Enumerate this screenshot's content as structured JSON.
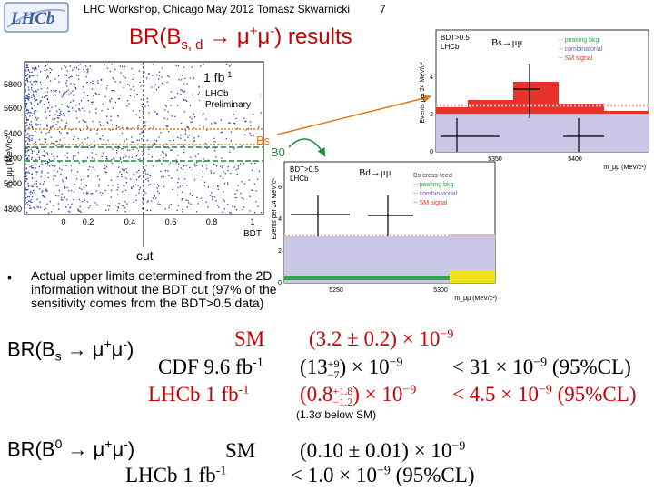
{
  "header": {
    "logo_text": "LHCb",
    "title": "LHC Workshop, Chicago May 2012 Tomasz Skwarnicki",
    "page_number": "7"
  },
  "slide_title": {
    "main": "BR(B",
    "sub": "s, d",
    "mid": " → μ",
    "sup1": "+",
    "mu2": "μ",
    "sup2": "-",
    "tail": ") results"
  },
  "scatter_plot": {
    "ylabel": "m_μμ (MeV/c²)",
    "xlabel": "BDT",
    "lumi": "1 fb",
    "lumi_sup": "-1",
    "experiment": "LHCb",
    "status": "Preliminary",
    "x_ticks": [
      "0",
      "0.2",
      "0.4",
      "0.6",
      "0.8",
      "1"
    ],
    "y_ticks": [
      "5800",
      "5600",
      "5400",
      "5200",
      "5000",
      "4800"
    ],
    "cut_label": "cut",
    "bs_label": "Bs",
    "b0_label": "B0"
  },
  "hist_bs": {
    "ylabel": "Events per 24 MeV/c²",
    "xlabel": "m_μμ (MeV/c²)",
    "cut": "BDT>0.5",
    "experiment": "LHCb",
    "decay": "Bs→μμ",
    "legend": [
      "-- peaking bkg",
      "-- combinatorial",
      "-- SM signal"
    ],
    "x_ticks": [
      "5350",
      "5400"
    ],
    "y_ticks": [
      "0",
      "2",
      "4"
    ]
  },
  "hist_bd": {
    "ylabel": "Events per 24 MeV/c²",
    "xlabel": "m_μμ (MeV/c²)",
    "cut": "BDT>0.5",
    "experiment": "LHCb",
    "decay": "Bd→μμ",
    "legend": [
      "Bs cross-feed",
      "-- peaking bkg",
      "-- combinatorial",
      "-- SM signal"
    ],
    "x_ticks": [
      "5250",
      "5300"
    ],
    "y_ticks": [
      "0",
      "2",
      "4",
      "6"
    ]
  },
  "bullet": {
    "marker": "•",
    "text": "Actual upper limits determined from the 2D information without the BDT cut (97% of the sensitivity comes from the BDT>0.5 data)"
  },
  "bs_results": {
    "label_main": "BR(B",
    "label_sub": "s",
    "label_mid": " → μ",
    "label_sup1": "+",
    "label_mu2": "μ",
    "label_sup2": "-",
    "label_tail": ")",
    "sm_label": "SM",
    "sm_value": "(3.2 ± 0.2) × 10",
    "sm_exp": "−9",
    "cdf_label": "CDF 9.6 fb",
    "cdf_sup": "-1",
    "cdf_value": "(13",
    "cdf_up": "+9",
    "cdf_down": "−7",
    "cdf_tail": ") × 10",
    "cdf_exp": "−9",
    "cdf_limit": "< 31 × 10",
    "cdf_limit_exp": "−9",
    "cdf_cl": "(95%CL)",
    "lhcb_label": "LHCb 1 fb",
    "lhcb_sup": "-1",
    "lhcb_value": "(0.8",
    "lhcb_up": "+1.8",
    "lhcb_down": "−1.2",
    "lhcb_tail": ") × 10",
    "lhcb_exp": "−9",
    "lhcb_limit": "< 4.5 × 10",
    "lhcb_limit_exp": "−9",
    "lhcb_cl": "(95%CL)",
    "note": "(1.3σ below SM)"
  },
  "b0_results": {
    "label_main": "BR(B",
    "label_sup0": "0",
    "label_mid": " → μ",
    "label_sup1": "+",
    "label_mu2": "μ",
    "label_sup2": "-",
    "label_tail": ")",
    "sm_label": "SM",
    "sm_value": "(0.10 ± 0.01) × 10",
    "sm_exp": "−9",
    "lhcb_label": "LHCb 1 fb",
    "lhcb_sup": "-1",
    "lhcb_limit": "< 1.0 × 10",
    "lhcb_limit_exp": "−9",
    "lhcb_cl": "(95%CL)"
  },
  "colors": {
    "title_red": "#cc0000",
    "lhcb_logo": "#3b5fa8",
    "band_orange": "#e07a1a",
    "band_green": "#1f8a3a",
    "hist_red": "#e8332b",
    "hist_lavender": "#c9c6e6",
    "peaking_green": "#2fa84a",
    "xfeed_yellow": "#f2e21a"
  }
}
